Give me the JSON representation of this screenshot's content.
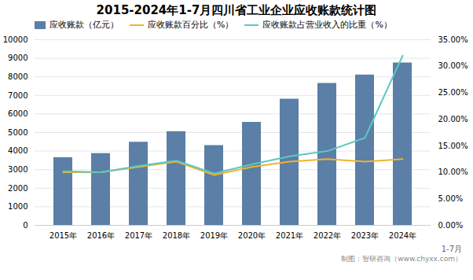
{
  "chart_data": {
    "type": "bar",
    "title": "2015-2024年1-7月四川省工业企业应收账款统计图",
    "categories": [
      "2015年",
      "2016年",
      "2017年",
      "2018年",
      "2019年",
      "2020年",
      "2021年",
      "2022年",
      "2023年",
      "2024年"
    ],
    "series": [
      {
        "name": "应收账款（亿元）",
        "type": "bar",
        "color": "#5b7fa6",
        "values": [
          3650,
          3870,
          4480,
          5050,
          4300,
          5550,
          6800,
          7650,
          8100,
          8750
        ]
      },
      {
        "name": "应收账款百分比（%）",
        "type": "line",
        "axis": "y2",
        "color": "#f0b429",
        "values": [
          10.0,
          10.0,
          11.0,
          12.0,
          9.5,
          11.0,
          12.0,
          12.5,
          12.0,
          12.5
        ]
      },
      {
        "name": "应收账款占营业收入的比重（%）",
        "type": "line",
        "axis": "y2",
        "color": "#5bc8c5",
        "values": [
          10.2,
          10.0,
          11.2,
          12.2,
          9.8,
          11.5,
          13.0,
          14.0,
          16.5,
          32.0
        ]
      }
    ],
    "ylim": [
      0,
      10000
    ],
    "yticks": [
      0,
      1000,
      2000,
      3000,
      4000,
      5000,
      6000,
      7000,
      8000,
      9000,
      10000
    ],
    "y2lim": [
      0,
      35
    ],
    "y2ticks": [
      {
        "value": 0,
        "label": "0.00%"
      },
      {
        "value": 5,
        "label": "5.00%"
      },
      {
        "value": 10,
        "label": "10.00%"
      },
      {
        "value": 15,
        "label": "15.00%"
      },
      {
        "value": 20,
        "label": "20.00%"
      },
      {
        "value": 25,
        "label": "25.00%"
      },
      {
        "value": 30,
        "label": "30.00%"
      },
      {
        "value": 35,
        "label": "35.00%"
      }
    ],
    "grid": true,
    "legend": "top",
    "annotations": [
      "1-7月",
      "制图：智研咨询（www.chyxx.com）"
    ]
  }
}
